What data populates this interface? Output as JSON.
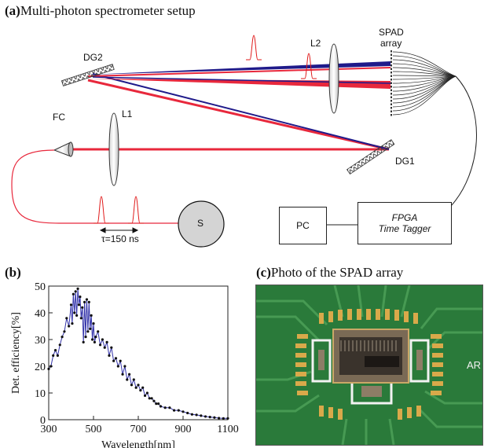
{
  "panel_a": {
    "tag": "(a)",
    "title": "Multi-photon spectrometer setup",
    "labels": {
      "dg2": "DG2",
      "l2": "L2",
      "spad_line1": "SPAD",
      "spad_line2": "array",
      "fc": "FC",
      "l1": "L1",
      "dg1": "DG1",
      "source": "S",
      "tau": "τ=150 ns",
      "pc": "PC",
      "fpga_line1": "FPGA",
      "fpga_line2": "Time Tagger"
    },
    "colors": {
      "red_beam": "#e8283c",
      "blue_beam": "#1f1a8a",
      "pulse": "#e01a1a",
      "grating": "#666666"
    }
  },
  "panel_b": {
    "tag": "(b)",
    "chart_data": {
      "type": "line",
      "xlabel": "Wavelength[nm]",
      "ylabel": "Det. efficiency[%]",
      "xlim": [
        300,
        1100
      ],
      "ylim": [
        0,
        50
      ],
      "xticks": [
        300,
        500,
        700,
        900,
        1100
      ],
      "yticks": [
        0,
        10,
        20,
        30,
        40,
        50
      ],
      "grid": false,
      "series": [
        {
          "color": "#3333aa",
          "x": [
            300,
            310,
            320,
            330,
            340,
            350,
            360,
            370,
            380,
            390,
            400,
            405,
            410,
            415,
            420,
            425,
            430,
            435,
            440,
            445,
            450,
            455,
            460,
            465,
            470,
            475,
            480,
            485,
            490,
            495,
            500,
            505,
            510,
            520,
            530,
            540,
            550,
            560,
            570,
            580,
            590,
            600,
            610,
            620,
            630,
            640,
            650,
            660,
            670,
            680,
            690,
            700,
            710,
            720,
            730,
            740,
            750,
            760,
            770,
            780,
            790,
            800,
            820,
            840,
            860,
            880,
            900,
            920,
            940,
            960,
            980,
            1000,
            1020,
            1040,
            1060,
            1080,
            1100
          ],
          "y": [
            19,
            20,
            24,
            26,
            24,
            28,
            31,
            33,
            38,
            35,
            43,
            36,
            47,
            40,
            48,
            39,
            49,
            43,
            46,
            38,
            42,
            29,
            44,
            31,
            45,
            33,
            44,
            34,
            39,
            30,
            36,
            29,
            31,
            33,
            28,
            30,
            27,
            29,
            24,
            27,
            22,
            23,
            20,
            22,
            17,
            20,
            15,
            17,
            13,
            15,
            12,
            13,
            11,
            12,
            9,
            10,
            8,
            8,
            7,
            6,
            6,
            5,
            4.5,
            4.5,
            3.5,
            3.5,
            3,
            2.5,
            2,
            1.8,
            1.5,
            1.2,
            1.0,
            0.8,
            0.6,
            0.5,
            0.5
          ]
        }
      ]
    }
  },
  "panel_c": {
    "tag": "(c)",
    "title": "Photo of the SPAD array",
    "visible_text": "AR",
    "colors": {
      "pcb": "#2a7a3a",
      "pad": "#d9a94a",
      "chip": "#3a332c"
    }
  }
}
